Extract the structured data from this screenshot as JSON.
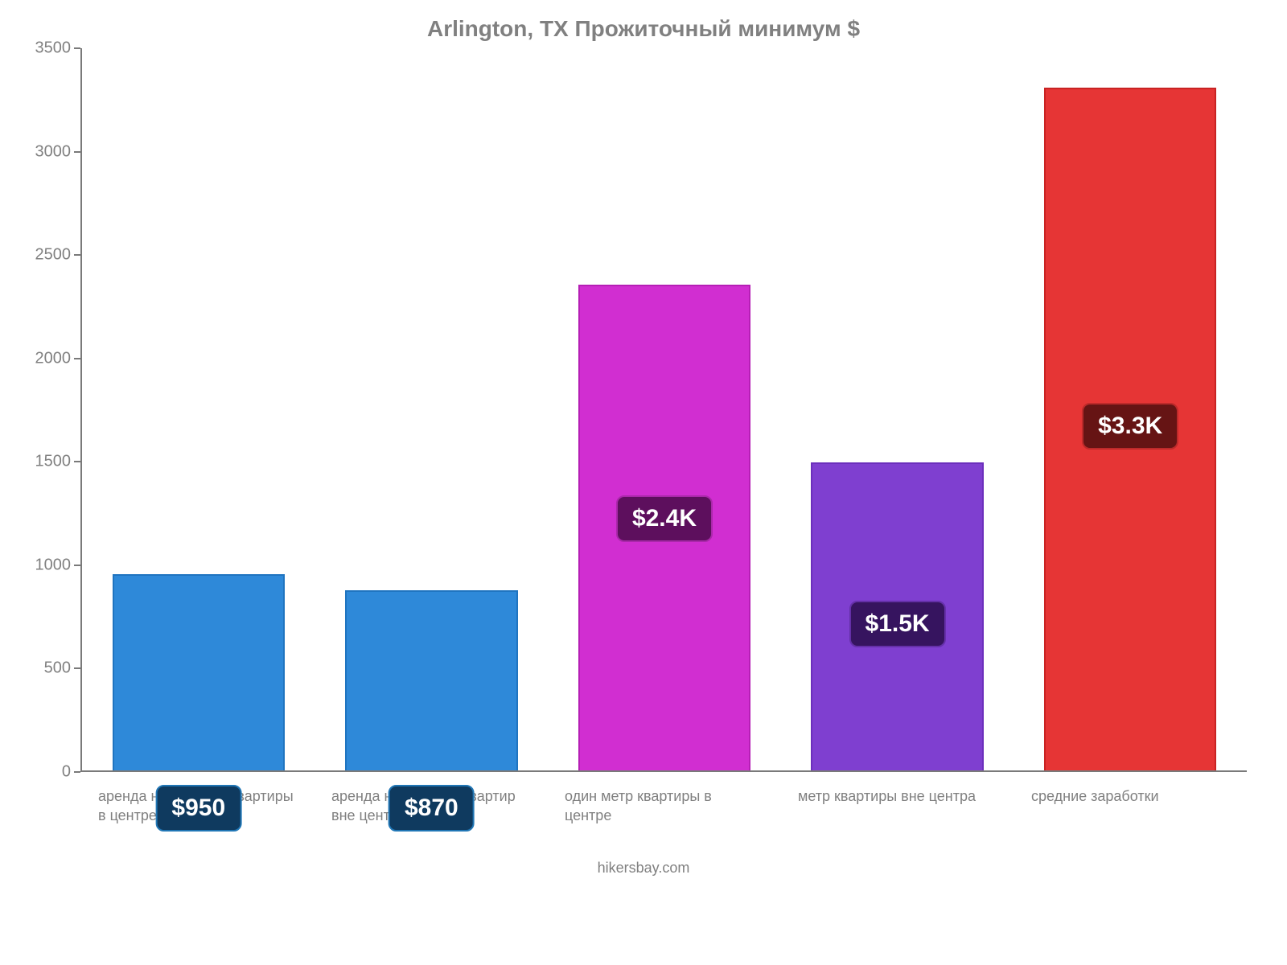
{
  "chart": {
    "type": "bar",
    "title": "Arlington, TX Прожиточный минимум $",
    "title_fontsize": 28,
    "title_color": "#808080",
    "background_color": "#ffffff",
    "axis_color": "#7a7a7a",
    "ylim": [
      0,
      3500
    ],
    "ytick_step": 500,
    "yticks": [
      0,
      500,
      1000,
      1500,
      2000,
      2500,
      3000,
      3500
    ],
    "ytick_fontsize": 20,
    "ytick_color": "#808080",
    "xlabel_fontsize": 18,
    "xlabel_color": "#808080",
    "footer": "hikersbay.com",
    "footer_fontsize": 18,
    "footer_color": "#808080",
    "bar_width": 0.74,
    "badge_fontsize": 30,
    "bars": [
      {
        "category": "аренда небольшой квартиры в центре",
        "value": 950,
        "value_label": "$950",
        "bar_color": "#2e89d9",
        "bar_border": "#1f74c0",
        "badge_bg": "#0f3a5f",
        "badge_border": "#2076b5",
        "badge_offset": 260
      },
      {
        "category": "аренда небольших квартир вне центра",
        "value": 870,
        "value_label": "$870",
        "bar_color": "#2e89d9",
        "bar_border": "#1f74c0",
        "badge_bg": "#0f3a5f",
        "badge_border": "#2076b5",
        "badge_offset": 240
      },
      {
        "category": "один метр квартиры в центре",
        "value": 2350,
        "value_label": "$2.4K",
        "bar_color": "#d12ed1",
        "bar_border": "#b61fb6",
        "badge_bg": "#5d0f5d",
        "badge_border": "#aa28aa",
        "badge_offset": 260
      },
      {
        "category": "метр квартиры вне центра",
        "value": 1490,
        "value_label": "$1.5K",
        "bar_color": "#7f3fd0",
        "bar_border": "#6c2fbc",
        "badge_bg": "#36145f",
        "badge_border": "#6530a8",
        "badge_offset": 170
      },
      {
        "category": "средние заработки",
        "value": 3300,
        "value_label": "$3.3K",
        "bar_color": "#e63535",
        "bar_border": "#c92323",
        "badge_bg": "#661414",
        "badge_border": "#bd2a2a",
        "badge_offset": 390
      }
    ]
  }
}
